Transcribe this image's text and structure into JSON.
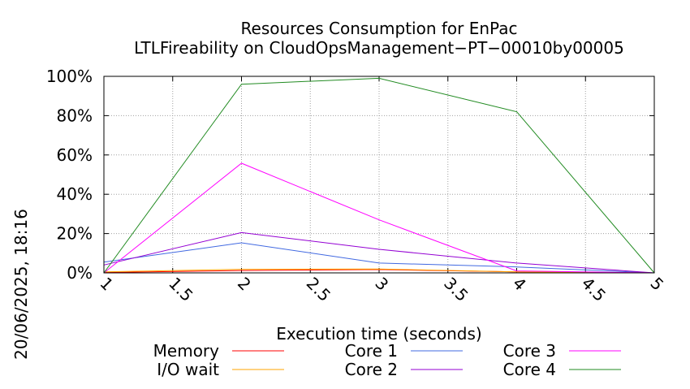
{
  "chart_data": {
    "type": "line",
    "title_line1": "Resources Consumption for EnPac",
    "title_line2": "LTLFireability on CloudOpsManagement−PT−00010by00005",
    "xlabel": "Execution time (seconds)",
    "ylabel": "",
    "side_label": "20/06/2025, 18:16",
    "xlim": [
      1,
      5
    ],
    "ylim": [
      0,
      100
    ],
    "x_ticks": [
      1,
      1.5,
      2,
      2.5,
      3,
      3.5,
      4,
      4.5,
      5
    ],
    "x_tick_labels": [
      "1",
      "1.5",
      "2",
      "2.5",
      "3",
      "3.5",
      "4",
      "4.5",
      "5"
    ],
    "y_ticks": [
      0,
      20,
      40,
      60,
      80,
      100
    ],
    "y_tick_labels": [
      "0%",
      "20%",
      "40%",
      "60%",
      "80%",
      "100%"
    ],
    "grid": true,
    "legend_position": "bottom",
    "series": [
      {
        "name": "Memory",
        "color": "#ff0000",
        "x": [
          1,
          2,
          3,
          4,
          5
        ],
        "y": [
          0.2,
          1.2,
          1.7,
          0.5,
          0
        ]
      },
      {
        "name": "I/O wait",
        "color": "#ffa500",
        "x": [
          1,
          2,
          3,
          4,
          5
        ],
        "y": [
          0.5,
          1.8,
          2.0,
          0.5,
          0
        ]
      },
      {
        "name": "Core 1",
        "color": "#4169e1",
        "x": [
          1,
          2,
          3,
          4,
          5
        ],
        "y": [
          5.5,
          15.3,
          5.0,
          3.0,
          0
        ]
      },
      {
        "name": "Core 2",
        "color": "#9400d3",
        "x": [
          1,
          2,
          3,
          4,
          5
        ],
        "y": [
          4.0,
          20.5,
          12.0,
          5.0,
          0
        ]
      },
      {
        "name": "Core 3",
        "color": "#ff00ff",
        "x": [
          1,
          2,
          3,
          4,
          5
        ],
        "y": [
          0,
          55.8,
          27.0,
          1.0,
          0
        ]
      },
      {
        "name": "Core 4",
        "color": "#228b22",
        "x": [
          1,
          2,
          3,
          4,
          5
        ],
        "y": [
          0,
          96.0,
          99.0,
          82.0,
          0
        ]
      }
    ]
  }
}
